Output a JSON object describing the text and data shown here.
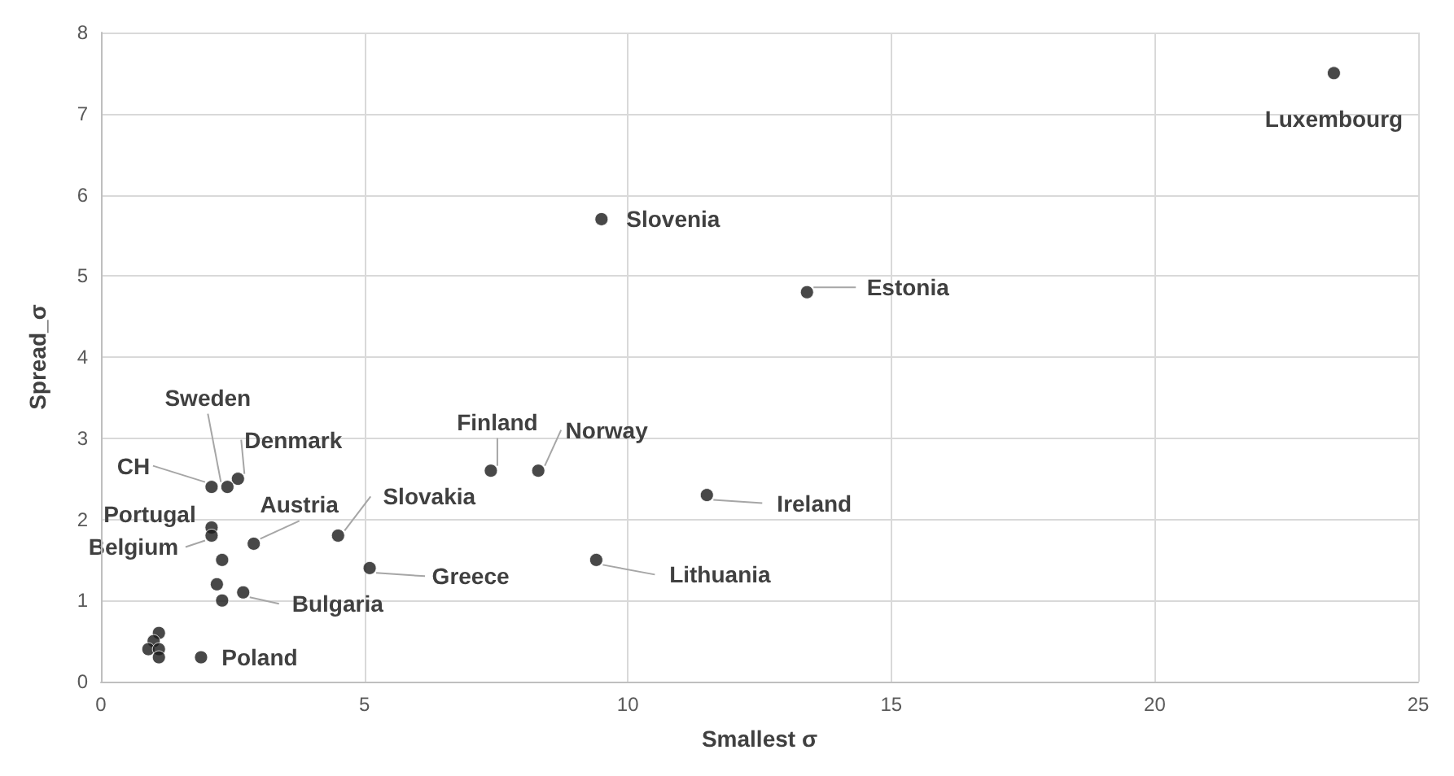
{
  "chart_data": {
    "type": "scatter",
    "xlabel": "Smallest σ",
    "ylabel": "Spread_σ",
    "series": [
      {
        "color": "#1a1a1a",
        "x": [
          23.4,
          9.5,
          13.4,
          7.4,
          8.3,
          11.5,
          9.4,
          4.5,
          5.1,
          2.1,
          2.4,
          2.6,
          2.1,
          2.1,
          2.9,
          2.3,
          2.2,
          2.3,
          2.7,
          1.9,
          1.1,
          1.0,
          0.9,
          1.1,
          1.1
        ],
        "values": [
          7.5,
          5.7,
          4.8,
          2.6,
          2.6,
          2.3,
          1.5,
          1.8,
          1.4,
          2.4,
          2.4,
          2.5,
          1.9,
          1.8,
          1.7,
          1.5,
          1.2,
          1.0,
          1.1,
          0.3,
          0.6,
          0.5,
          0.4,
          0.4,
          0.3
        ]
      }
    ],
    "annotations": [
      {
        "text": "Luxembourg",
        "x": 23.4,
        "y": 7.5
      },
      {
        "text": "Slovenia",
        "x": 9.5,
        "y": 5.7
      },
      {
        "text": "Estonia",
        "x": 13.4,
        "y": 4.8
      },
      {
        "text": "Finland",
        "x": 7.4,
        "y": 2.6
      },
      {
        "text": "Norway",
        "x": 8.3,
        "y": 2.6
      },
      {
        "text": "Ireland",
        "x": 11.5,
        "y": 2.3
      },
      {
        "text": "Lithuania",
        "x": 9.4,
        "y": 1.5
      },
      {
        "text": "Slovakia",
        "x": 4.5,
        "y": 1.8
      },
      {
        "text": "Greece",
        "x": 5.1,
        "y": 1.4
      },
      {
        "text": "CH",
        "x": 2.1,
        "y": 2.4
      },
      {
        "text": "Sweden",
        "x": 2.4,
        "y": 2.4
      },
      {
        "text": "Denmark",
        "x": 2.6,
        "y": 2.5
      },
      {
        "text": "Portugal",
        "x": 2.1,
        "y": 1.9
      },
      {
        "text": "Belgium",
        "x": 2.1,
        "y": 1.8
      },
      {
        "text": "Austria",
        "x": 2.9,
        "y": 1.7
      },
      {
        "text": "Bulgaria",
        "x": 2.7,
        "y": 1.1
      },
      {
        "text": "Poland",
        "x": 1.9,
        "y": 0.3
      }
    ],
    "xlim": [
      0,
      25
    ],
    "xticks": [
      0,
      5,
      10,
      15,
      20,
      25
    ],
    "ylim": [
      0,
      8
    ],
    "yticks": [
      0,
      1,
      2,
      3,
      4,
      5,
      6,
      7,
      8
    ],
    "grid": true,
    "marker": "circle"
  }
}
